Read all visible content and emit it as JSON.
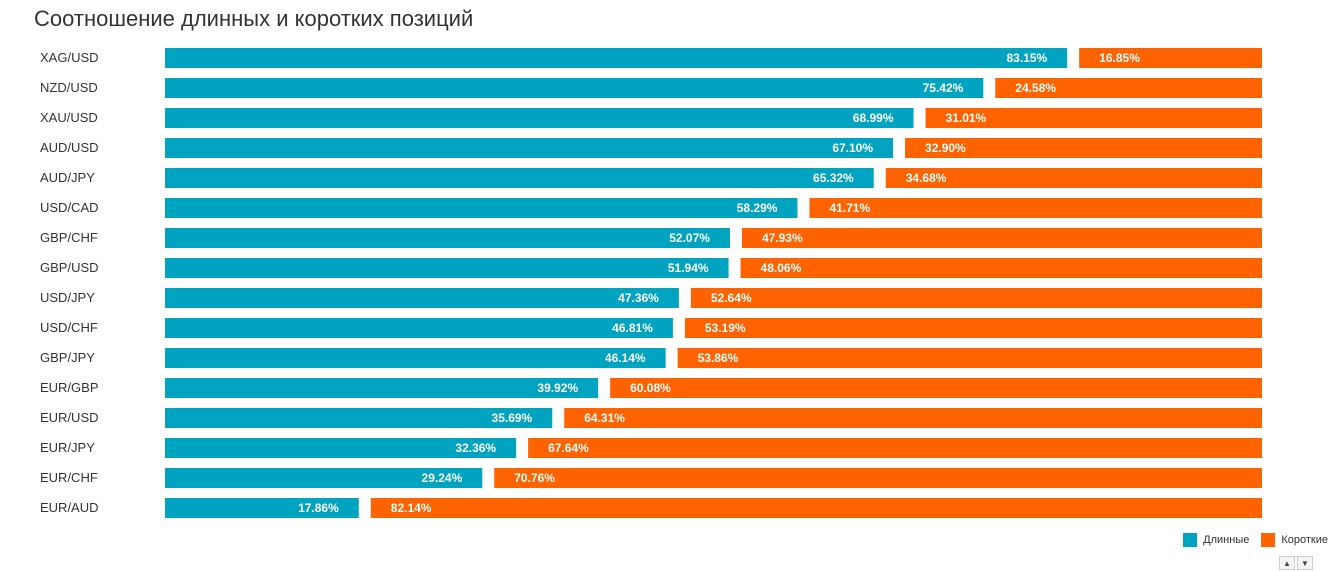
{
  "chart_data": {
    "type": "bar",
    "orientation": "horizontal",
    "stacked": true,
    "title": "Соотношение длинных и коротких позиций",
    "categories": [
      "XAG/USD",
      "NZD/USD",
      "XAU/USD",
      "AUD/USD",
      "AUD/JPY",
      "USD/CAD",
      "GBP/CHF",
      "GBP/USD",
      "USD/JPY",
      "USD/CHF",
      "GBP/JPY",
      "EUR/GBP",
      "EUR/USD",
      "EUR/JPY",
      "EUR/CHF",
      "EUR/AUD"
    ],
    "series": [
      {
        "name": "Длинные",
        "color": "#00a4c0",
        "values": [
          83.15,
          75.42,
          68.99,
          67.1,
          65.32,
          58.29,
          52.07,
          51.94,
          47.36,
          46.81,
          46.14,
          39.92,
          35.69,
          32.36,
          29.24,
          17.86
        ],
        "labels": [
          "83.15%",
          "75.42%",
          "68.99%",
          "67.10%",
          "65.32%",
          "58.29%",
          "52.07%",
          "51.94%",
          "47.36%",
          "46.81%",
          "46.14%",
          "39.92%",
          "35.69%",
          "32.36%",
          "29.24%",
          "17.86%"
        ]
      },
      {
        "name": "Короткие",
        "color": "#ff6300",
        "values": [
          16.85,
          24.58,
          31.01,
          32.9,
          34.68,
          41.71,
          47.93,
          48.06,
          52.64,
          53.19,
          53.86,
          60.08,
          64.31,
          67.64,
          70.76,
          82.14
        ],
        "labels": [
          "16.85%",
          "24.58%",
          "31.01%",
          "32.90%",
          "34.68%",
          "41.71%",
          "47.93%",
          "48.06%",
          "52.64%",
          "53.19%",
          "53.86%",
          "60.08%",
          "64.31%",
          "67.64%",
          "70.76%",
          "82.14%"
        ]
      }
    ],
    "xlim": [
      0,
      100
    ],
    "grid": false,
    "legend_position": "bottom-right"
  },
  "scroll": {
    "up_icon": "arrow-up-icon",
    "down_icon": "arrow-down-icon"
  }
}
